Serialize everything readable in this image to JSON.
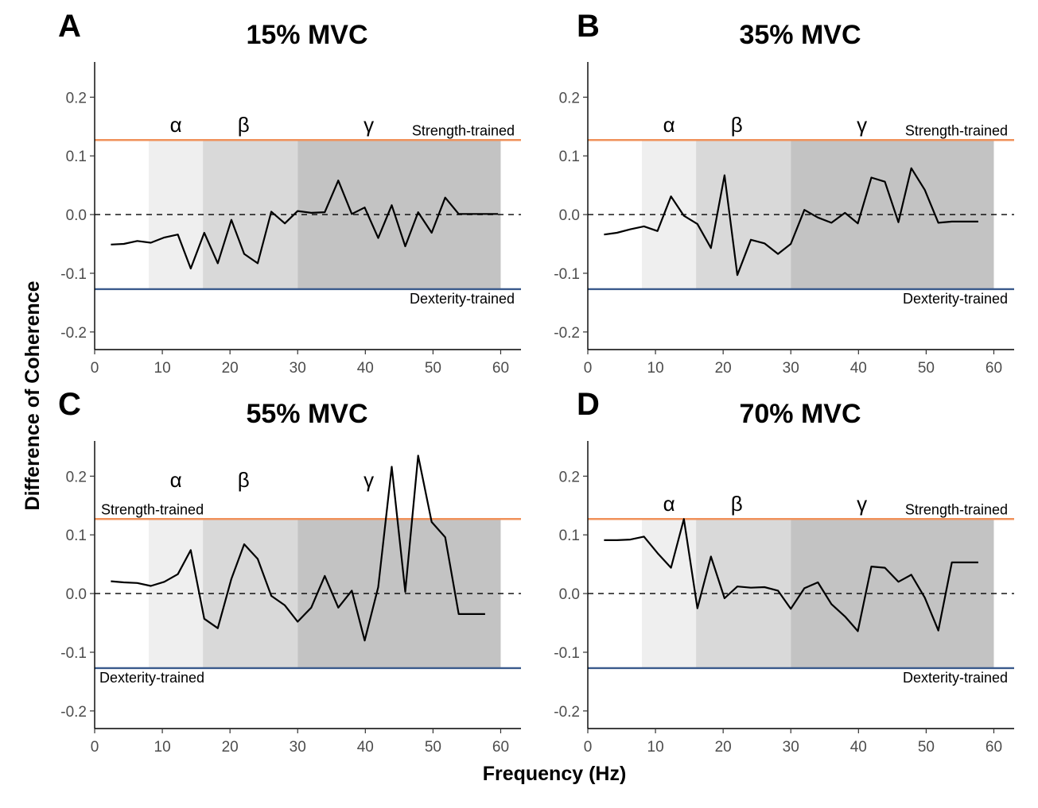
{
  "chart_data": {
    "type": "line",
    "xlabel": "Frequency (Hz)",
    "ylabel": "Difference of Coherence",
    "xlim": [
      0,
      63
    ],
    "ylim": [
      -0.23,
      0.26
    ],
    "x_ticks": [
      0,
      10,
      20,
      30,
      40,
      50,
      60
    ],
    "y_ticks": [
      -0.2,
      -0.1,
      0.0,
      0.1,
      0.2
    ],
    "y_tick_labels": [
      "-0.2",
      "-0.1",
      "0.0",
      "0.1",
      "0.2"
    ],
    "x_tick_labels": [
      "0",
      "10",
      "20",
      "30",
      "40",
      "50",
      "60"
    ],
    "zero_line": 0,
    "reference_lines": [
      {
        "name": "Strength-trained",
        "value": 0.127,
        "color": "#f0915a"
      },
      {
        "name": "Dexterity-trained",
        "value": -0.127,
        "color": "#3a5a8c"
      }
    ],
    "band_regions": [
      {
        "symbol": "α",
        "from": 8,
        "to": 16,
        "color": "#efefef"
      },
      {
        "symbol": "β",
        "from": 16,
        "to": 30,
        "color": "#d9d9d9"
      },
      {
        "symbol": "γ",
        "from": 30,
        "to": 60,
        "color": "#c3c3c3"
      }
    ],
    "line_color": "#000000",
    "panels": [
      {
        "letter": "A",
        "title": "15% MVC",
        "x": [
          2.4,
          4.3,
          6.3,
          8.3,
          10.3,
          12.3,
          14.2,
          16.2,
          18.2,
          20.2,
          22.1,
          24.1,
          26.1,
          28.1,
          30.0,
          32.0,
          34.0,
          36.0,
          38.0,
          39.9,
          41.9,
          43.9,
          45.9,
          47.8,
          49.8,
          51.8,
          53.8,
          55.7,
          57.7,
          59.6
        ],
        "values": [
          -0.051,
          -0.05,
          -0.045,
          -0.048,
          -0.039,
          -0.034,
          -0.092,
          -0.031,
          -0.083,
          -0.009,
          -0.067,
          -0.083,
          0.005,
          -0.015,
          0.006,
          0.003,
          0.004,
          0.058,
          0.001,
          0.012,
          -0.04,
          0.016,
          -0.054,
          0.004,
          -0.031,
          0.029,
          0.001,
          0.001,
          0.001,
          0.001
        ]
      },
      {
        "letter": "B",
        "title": "35% MVC",
        "x": [
          2.4,
          4.3,
          6.3,
          8.3,
          10.3,
          12.3,
          14.2,
          16.2,
          18.2,
          20.2,
          22.1,
          24.1,
          26.1,
          28.1,
          30.0,
          32.0,
          34.0,
          36.0,
          38.0,
          39.9,
          41.9,
          43.9,
          45.9,
          47.8,
          49.8,
          51.8,
          53.8,
          55.7,
          57.7
        ],
        "values": [
          -0.034,
          -0.031,
          -0.025,
          -0.02,
          -0.028,
          0.031,
          -0.002,
          -0.016,
          -0.057,
          0.067,
          -0.103,
          -0.043,
          -0.049,
          -0.067,
          -0.05,
          0.008,
          -0.005,
          -0.014,
          0.003,
          -0.015,
          0.063,
          0.056,
          -0.013,
          0.079,
          0.042,
          -0.014,
          -0.012,
          -0.012,
          -0.012
        ]
      },
      {
        "letter": "C",
        "title": "55% MVC",
        "x": [
          2.4,
          4.3,
          6.3,
          8.3,
          10.3,
          12.3,
          14.2,
          16.2,
          18.2,
          20.2,
          22.1,
          24.1,
          26.1,
          28.1,
          30.0,
          32.0,
          34.0,
          36.0,
          38.0,
          39.9,
          41.9,
          43.9,
          45.9,
          47.8,
          49.8,
          51.8,
          53.8,
          55.7,
          57.7
        ],
        "values": [
          0.021,
          0.019,
          0.018,
          0.013,
          0.02,
          0.033,
          0.074,
          -0.043,
          -0.059,
          0.025,
          0.084,
          0.059,
          -0.004,
          -0.02,
          -0.048,
          -0.024,
          0.03,
          -0.024,
          0.005,
          -0.08,
          0.011,
          0.216,
          0.003,
          0.235,
          0.122,
          0.096,
          -0.035,
          -0.035,
          -0.035
        ]
      },
      {
        "letter": "D",
        "title": "70% MVC",
        "x": [
          2.4,
          4.3,
          6.3,
          8.3,
          10.3,
          12.3,
          14.2,
          16.2,
          18.2,
          20.2,
          22.1,
          24.1,
          26.1,
          28.1,
          30.0,
          32.0,
          34.0,
          36.0,
          38.0,
          39.9,
          41.9,
          43.9,
          45.9,
          47.8,
          49.8,
          51.8,
          53.8,
          55.7,
          57.7
        ],
        "values": [
          0.091,
          0.091,
          0.092,
          0.097,
          0.069,
          0.044,
          0.127,
          -0.025,
          0.063,
          -0.008,
          0.012,
          0.01,
          0.011,
          0.005,
          -0.026,
          0.009,
          0.019,
          -0.018,
          -0.039,
          -0.064,
          0.046,
          0.044,
          0.02,
          0.032,
          -0.007,
          -0.063,
          0.053,
          0.053,
          0.053
        ]
      }
    ]
  }
}
